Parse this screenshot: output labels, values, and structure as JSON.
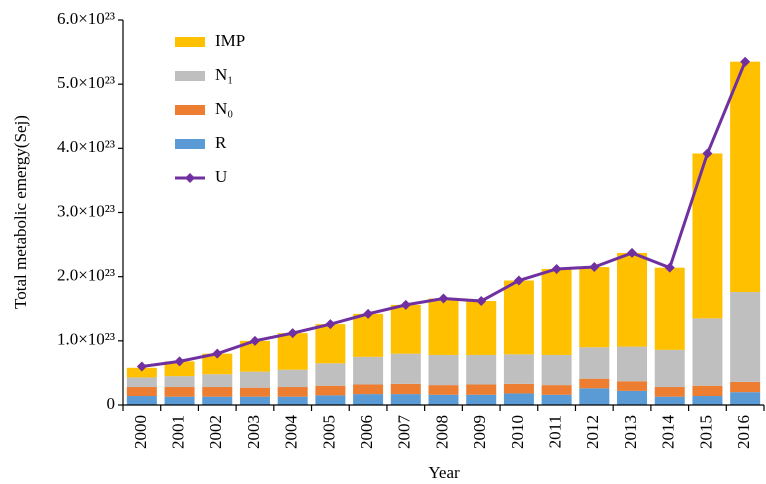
{
  "chart_data": {
    "type": "bar",
    "stacked": true,
    "y_label": "Total metabolic emergy(Sej)",
    "x_label": "Year",
    "categories": [
      "2000",
      "2001",
      "2002",
      "2003",
      "2004",
      "2005",
      "2006",
      "2007",
      "2008",
      "2009",
      "2010",
      "2011",
      "2012",
      "2013",
      "2014",
      "2015",
      "2016"
    ],
    "ylim": [
      0,
      6e+23
    ],
    "yticks": [
      0,
      {
        "value": 1e+23,
        "label": "1.0×10²³"
      },
      {
        "value": 2e+23,
        "label": "2.0×10²³"
      },
      {
        "value": 3e+23,
        "label": "3.0×10²³"
      },
      {
        "value": 4e+23,
        "label": "4.0×10²³"
      },
      {
        "value": 5e+23,
        "label": "5.0×10²³"
      },
      {
        "value": 6e+23,
        "label": "6.0×10²³"
      }
    ],
    "legend": "upper left",
    "series": [
      {
        "name": "IMP",
        "color": "#ffc000",
        "values": [
          1.5e+22,
          2.3e+22,
          3.2e+22,
          4.8e+22,
          5.7e+22,
          6.1e+22,
          6.7e+22,
          7.6e+22,
          8.8e+22,
          8.4e+22,
          1.15e+23,
          1.34e+23,
          1.25e+23,
          1.46e+23,
          1.28e+23,
          2.57e+23,
          3.59e+23
        ]
      },
      {
        "name": "N₁",
        "color": "#bfbfbf",
        "values": [
          1.5e+22,
          1.7e+22,
          2e+22,
          2.5e+22,
          2.7e+22,
          3.5e+22,
          4.3e+22,
          4.7e+22,
          4.7e+22,
          4.6e+22,
          4.6e+22,
          4.7e+22,
          4.9e+22,
          5.4e+22,
          5.8e+22,
          1.05e+23,
          1.4e+23
        ]
      },
      {
        "name": "N₀",
        "color": "#ed7d31",
        "values": [
          1.4e+22,
          1.5e+22,
          1.5e+22,
          1.4e+22,
          1.5e+22,
          1.5e+22,
          1.5e+22,
          1.6e+22,
          1.5e+22,
          1.6e+22,
          1.5e+22,
          1.5e+22,
          1.5e+22,
          1.5e+22,
          1.5e+22,
          1.6e+22,
          1.6e+22
        ]
      },
      {
        "name": "R",
        "color": "#5b9bd5",
        "values": [
          1.4e+22,
          1.3e+22,
          1.3e+22,
          1.3e+22,
          1.3e+22,
          1.5e+22,
          1.7e+22,
          1.7e+22,
          1.6e+22,
          1.6e+22,
          1.8e+22,
          1.6e+22,
          2.6e+22,
          2.2e+22,
          1.3e+22,
          1.4e+22,
          2e+22
        ]
      },
      {
        "name": "U",
        "color": "#7030a0",
        "type": "line",
        "values": [
          6e+22,
          6.8e+22,
          8e+22,
          1e+23,
          1.12e+23,
          1.26e+23,
          1.42e+23,
          1.56e+23,
          1.66e+23,
          1.62e+23,
          1.94e+23,
          2.12e+23,
          2.15e+23,
          2.37e+23,
          2.14e+23,
          3.92e+23,
          5.35e+23
        ]
      }
    ]
  }
}
